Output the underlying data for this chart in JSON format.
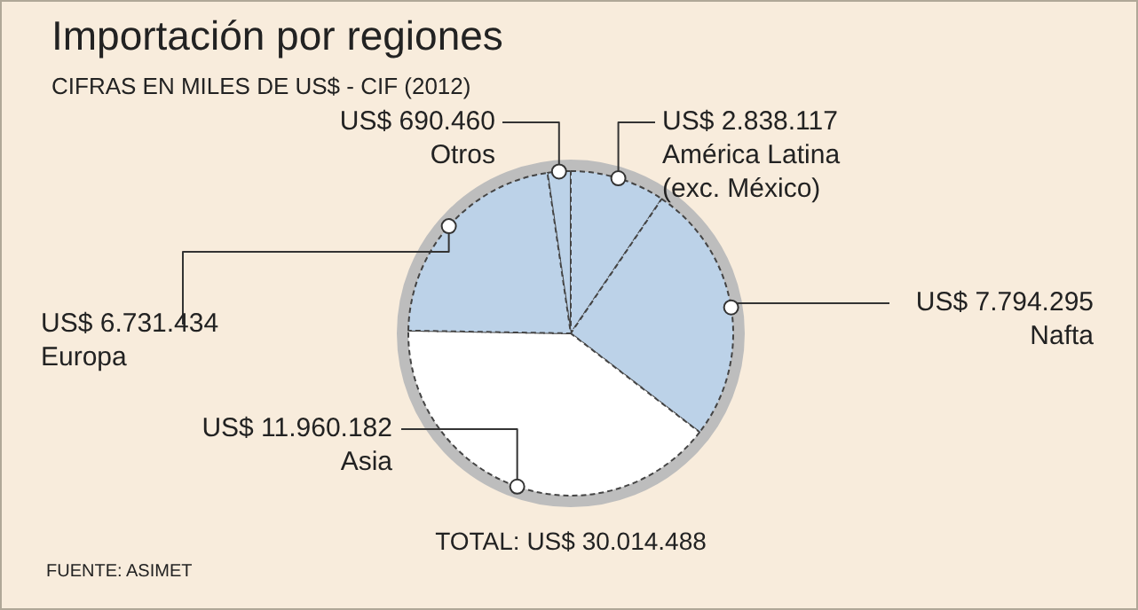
{
  "chart_data": {
    "type": "pie",
    "title": "Importación por regiones",
    "subtitle": "CIFRAS EN MILES DE US$ - CIF (2012)",
    "categories": [
      "Otros",
      "América Latina (exc. México)",
      "Nafta",
      "Asia",
      "Europa"
    ],
    "values": [
      690460,
      2838117,
      7794295,
      11960182,
      6731434
    ],
    "value_labels": [
      "US$ 690.460",
      "US$ 2.838.117",
      "US$ 7.794.295",
      "US$ 11.960.182",
      "US$ 6.731.434"
    ],
    "colors": [
      "#bcd2e8",
      "#bcd2e8",
      "#bcd2e8",
      "#ffffff",
      "#bcd2e8"
    ],
    "legend": false,
    "annotations": [
      "TOTAL: US$ 30.014.488",
      "FUENTE: ASIMET"
    ]
  }
}
